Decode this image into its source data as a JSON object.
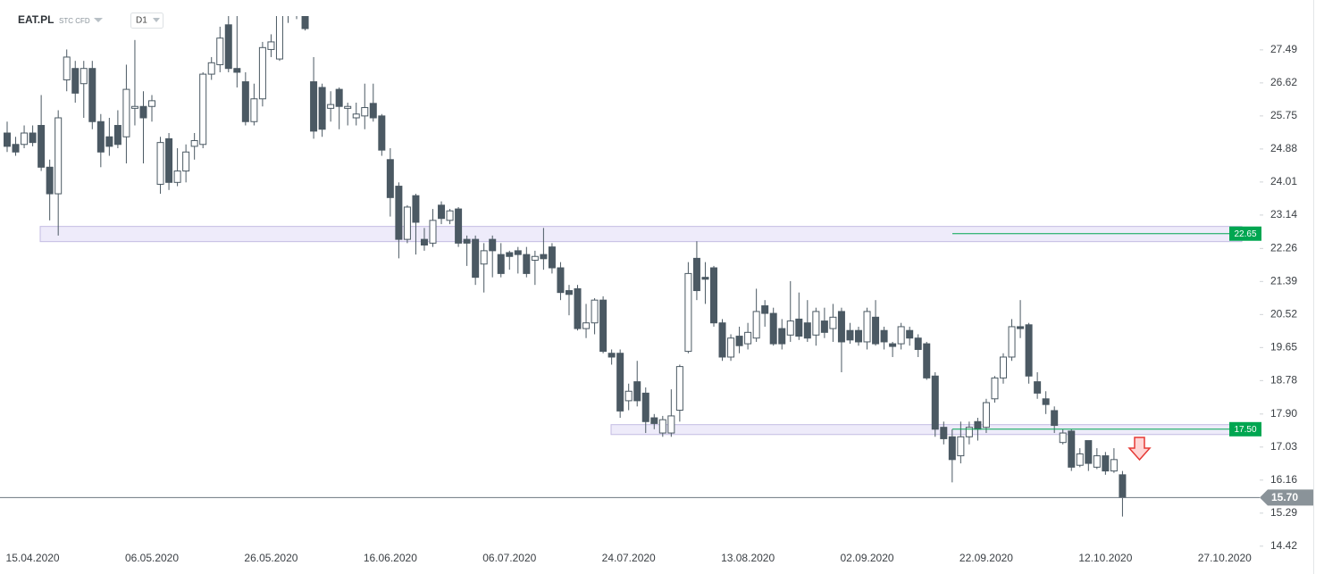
{
  "header": {
    "symbol": "EAT.PL",
    "market": "STC CFD",
    "interval": "D1"
  },
  "chart_data": {
    "type": "candlestick",
    "categories": [
      null,
      null,
      null,
      "15.04.2020",
      null,
      null,
      null,
      null,
      null,
      null,
      null,
      null,
      null,
      null,
      null,
      null,
      null,
      "06.05.2020",
      null,
      null,
      null,
      null,
      null,
      null,
      null,
      null,
      null,
      null,
      null,
      null,
      null,
      "26.05.2020",
      null,
      null,
      null,
      null,
      null,
      null,
      null,
      null,
      null,
      null,
      null,
      null,
      null,
      "16.06.2020",
      null,
      null,
      null,
      null,
      null,
      null,
      null,
      null,
      null,
      null,
      null,
      null,
      null,
      "06.07.2020",
      null,
      null,
      null,
      null,
      null,
      null,
      null,
      null,
      null,
      null,
      null,
      null,
      null,
      "24.07.2020",
      null,
      null,
      null,
      null,
      null,
      null,
      null,
      null,
      null,
      null,
      null,
      null,
      null,
      "13.08.2020",
      null,
      null,
      null,
      null,
      null,
      null,
      null,
      null,
      null,
      null,
      null,
      null,
      null,
      "02.09.2020",
      null,
      null,
      null,
      null,
      null,
      null,
      null,
      null,
      null,
      null,
      null,
      null,
      null,
      "22.09.2020",
      null,
      null,
      null,
      null,
      null,
      null,
      null,
      null,
      null,
      null,
      null,
      null,
      null,
      "12.10.2020",
      null,
      null,
      null,
      null,
      null,
      null,
      null,
      null,
      null,
      null,
      null,
      null,
      null,
      "27.10.2020"
    ],
    "open": [
      25.3,
      25.0,
      25.0,
      25.3,
      25.5,
      24.4,
      23.7,
      26.7,
      27.0,
      26.6,
      27.0,
      25.6,
      25.2,
      25.5,
      25.2,
      25.95,
      26.0,
      26.0,
      23.95,
      25.15,
      24.0,
      24.3,
      24.95,
      25.0,
      26.85,
      27.1,
      28.15,
      27.0,
      26.65,
      25.6,
      26.2,
      27.5,
      27.25,
      28.4,
      29.0,
      28.6,
      26.65,
      26.5,
      25.95,
      26.45,
      25.95,
      25.7,
      25.75,
      26.08,
      25.75,
      24.6,
      23.9,
      22.5,
      23.65,
      22.5,
      22.4,
      23.4,
      23.0,
      23.3,
      22.5,
      22.5,
      21.85,
      22.5,
      22.1,
      22.15,
      22.2,
      22.1,
      21.95,
      22.1,
      22.3,
      21.75,
      21.15,
      21.2,
      20.15,
      20.3,
      20.9,
      19.5,
      19.5,
      18.25,
      18.75,
      18.45,
      17.8,
      17.4,
      17.4,
      18.0,
      19.55,
      22.0,
      21.5,
      21.75,
      20.3,
      19.4,
      19.95,
      19.75,
      19.9,
      20.75,
      20.55,
      20.15,
      19.98,
      20.4,
      20.3,
      19.98,
      20.35,
      20.15,
      20.6,
      20.1,
      20.1,
      19.8,
      20.45,
      20.1,
      19.75,
      19.75,
      20.1,
      19.9,
      19.75,
      18.9,
      17.55,
      17.3,
      16.8,
      17.3,
      17.7,
      17.55,
      18.3,
      18.85,
      19.4,
      20.2,
      20.25,
      18.75,
      18.3,
      17.99,
      17.15,
      17.45,
      16.55,
      17.2,
      16.5,
      16.8,
      16.4,
      16.3,
      null,
      null,
      null,
      null,
      null,
      null,
      null,
      null,
      null,
      null,
      null,
      null
    ],
    "high": [
      25.6,
      25.2,
      25.5,
      25.5,
      26.3,
      24.6,
      25.9,
      27.5,
      27.2,
      27.2,
      27.2,
      25.8,
      25.7,
      25.9,
      27.1,
      27.75,
      26.4,
      26.3,
      25.2,
      25.3,
      24.9,
      25.0,
      25.3,
      26.9,
      27.3,
      28.1,
      28.4,
      28.4,
      26.9,
      26.6,
      27.7,
      27.9,
      28.4,
      29.2,
      29.3,
      28.7,
      27.3,
      26.6,
      26.4,
      26.5,
      26.1,
      26.1,
      26.6,
      26.6,
      25.8,
      24.9,
      24.0,
      23.4,
      23.7,
      22.8,
      23.3,
      23.5,
      23.3,
      23.35,
      22.6,
      22.6,
      22.4,
      22.6,
      22.4,
      22.2,
      22.3,
      22.3,
      22.2,
      22.8,
      22.4,
      21.9,
      21.3,
      21.3,
      20.8,
      20.95,
      21.0,
      19.6,
      19.6,
      18.7,
      19.3,
      18.6,
      17.9,
      17.85,
      18.55,
      19.2,
      21.9,
      22.45,
      21.9,
      21.8,
      20.4,
      20.0,
      20.2,
      20.3,
      21.2,
      20.9,
      20.7,
      20.4,
      21.4,
      21.1,
      20.9,
      20.7,
      20.7,
      20.8,
      20.7,
      20.3,
      20.2,
      20.7,
      20.9,
      20.2,
      19.8,
      20.3,
      20.2,
      20.0,
      19.8,
      19.0,
      17.7,
      17.5,
      17.7,
      17.7,
      17.8,
      18.3,
      18.9,
      19.5,
      20.4,
      20.9,
      20.3,
      19.0,
      18.5,
      18.1,
      17.5,
      17.5,
      17.0,
      17.2,
      17.0,
      16.9,
      17.0,
      16.4,
      null,
      null,
      null,
      null,
      null,
      null,
      null,
      null,
      null,
      null,
      null,
      null
    ],
    "low": [
      24.8,
      24.7,
      24.9,
      24.95,
      24.3,
      23.0,
      22.6,
      26.4,
      26.1,
      25.7,
      25.4,
      24.4,
      24.7,
      24.9,
      24.5,
      25.5,
      24.5,
      25.6,
      23.7,
      23.8,
      23.9,
      24.0,
      24.6,
      24.9,
      26.7,
      26.9,
      26.9,
      26.5,
      25.5,
      25.5,
      26.0,
      27.3,
      27.2,
      28.2,
      28.3,
      28.0,
      25.15,
      25.2,
      25.6,
      25.4,
      25.5,
      25.5,
      25.4,
      25.6,
      24.7,
      23.1,
      22.0,
      22.4,
      22.1,
      22.2,
      22.3,
      22.9,
      22.9,
      22.3,
      21.8,
      21.3,
      21.1,
      21.5,
      21.5,
      21.7,
      21.6,
      21.5,
      21.3,
      21.7,
      21.6,
      20.9,
      20.5,
      20.1,
      19.9,
      20.0,
      19.5,
      19.2,
      17.8,
      18.0,
      18.1,
      17.4,
      17.5,
      17.3,
      17.3,
      17.7,
      19.5,
      20.9,
      20.8,
      20.2,
      19.3,
      19.3,
      19.5,
      19.6,
      19.8,
      20.2,
      19.7,
      19.6,
      19.8,
      19.85,
      19.8,
      19.7,
      19.9,
      19.8,
      19.0,
      19.75,
      19.7,
      19.6,
      19.7,
      19.6,
      19.4,
      19.6,
      19.7,
      19.4,
      18.8,
      17.3,
      17.1,
      16.1,
      16.6,
      17.1,
      17.2,
      17.4,
      18.2,
      18.7,
      19.3,
      19.9,
      18.7,
      18.3,
      17.9,
      17.4,
      17.1,
      16.4,
      16.5,
      16.4,
      16.45,
      16.3,
      16.35,
      15.2,
      null,
      null,
      null,
      null,
      null,
      null,
      null,
      null,
      null,
      null,
      null,
      null
    ],
    "close": [
      24.95,
      24.8,
      25.3,
      25.05,
      24.4,
      23.7,
      25.7,
      27.3,
      26.35,
      27.0,
      25.6,
      24.8,
      24.95,
      25.0,
      26.45,
      26.0,
      25.7,
      26.15,
      25.05,
      24.0,
      24.3,
      24.8,
      25.1,
      26.85,
      27.15,
      27.8,
      27.0,
      26.9,
      25.6,
      26.2,
      27.55,
      27.7,
      28.4,
      29.0,
      28.6,
      28.05,
      25.35,
      25.4,
      26.05,
      26.0,
      26.0,
      25.8,
      25.97,
      25.7,
      24.85,
      23.6,
      22.5,
      23.35,
      22.95,
      22.35,
      23.0,
      23.05,
      23.25,
      22.4,
      22.4,
      21.5,
      22.2,
      22.2,
      21.6,
      22.05,
      22.1,
      21.6,
      22.05,
      21.99,
      21.75,
      21.1,
      21.05,
      20.15,
      20.3,
      20.9,
      19.55,
      19.4,
      17.98,
      18.5,
      18.25,
      17.7,
      17.65,
      17.75,
      17.85,
      19.15,
      21.6,
      21.15,
      21.45,
      20.3,
      19.4,
      19.9,
      19.7,
      20.05,
      20.6,
      20.55,
      19.75,
      19.75,
      20.35,
      19.95,
      19.9,
      20.6,
      20.05,
      20.45,
      19.8,
      19.85,
      19.8,
      20.6,
      19.75,
      19.8,
      19.68,
      20.2,
      19.9,
      19.6,
      18.85,
      17.5,
      17.25,
      16.7,
      17.3,
      17.55,
      17.5,
      18.2,
      18.85,
      19.4,
      20.2,
      20.15,
      18.9,
      18.45,
      18.15,
      17.6,
      17.4,
      16.5,
      16.85,
      16.6,
      16.8,
      16.4,
      16.7,
      15.7,
      null,
      null,
      null,
      null,
      null,
      null,
      null,
      null,
      null,
      null,
      null,
      null
    ],
    "up_color": "#ffffff",
    "down_color": "#4b5963",
    "ylim": [
      14.11,
      28.38
    ],
    "yticks": [
      27.49,
      26.62,
      25.75,
      24.88,
      24.01,
      23.14,
      22.26,
      21.39,
      20.52,
      19.65,
      18.78,
      {
        "value": 17.9,
        "label": "17.90"
      },
      17.03,
      16.16,
      15.29,
      14.42
    ],
    "grid": false,
    "zones": [
      {
        "low": 22.44,
        "high": 22.84
      },
      {
        "low": 17.36,
        "high": 17.62
      }
    ],
    "levels": [
      {
        "value": 22.65,
        "color": "#00a651"
      },
      {
        "value": {
          "value": 17.5,
          "label": "17.50"
        },
        "color": "#00a651"
      }
    ],
    "last_price": {
      "value": 15.7,
      "label": "15.70"
    }
  }
}
